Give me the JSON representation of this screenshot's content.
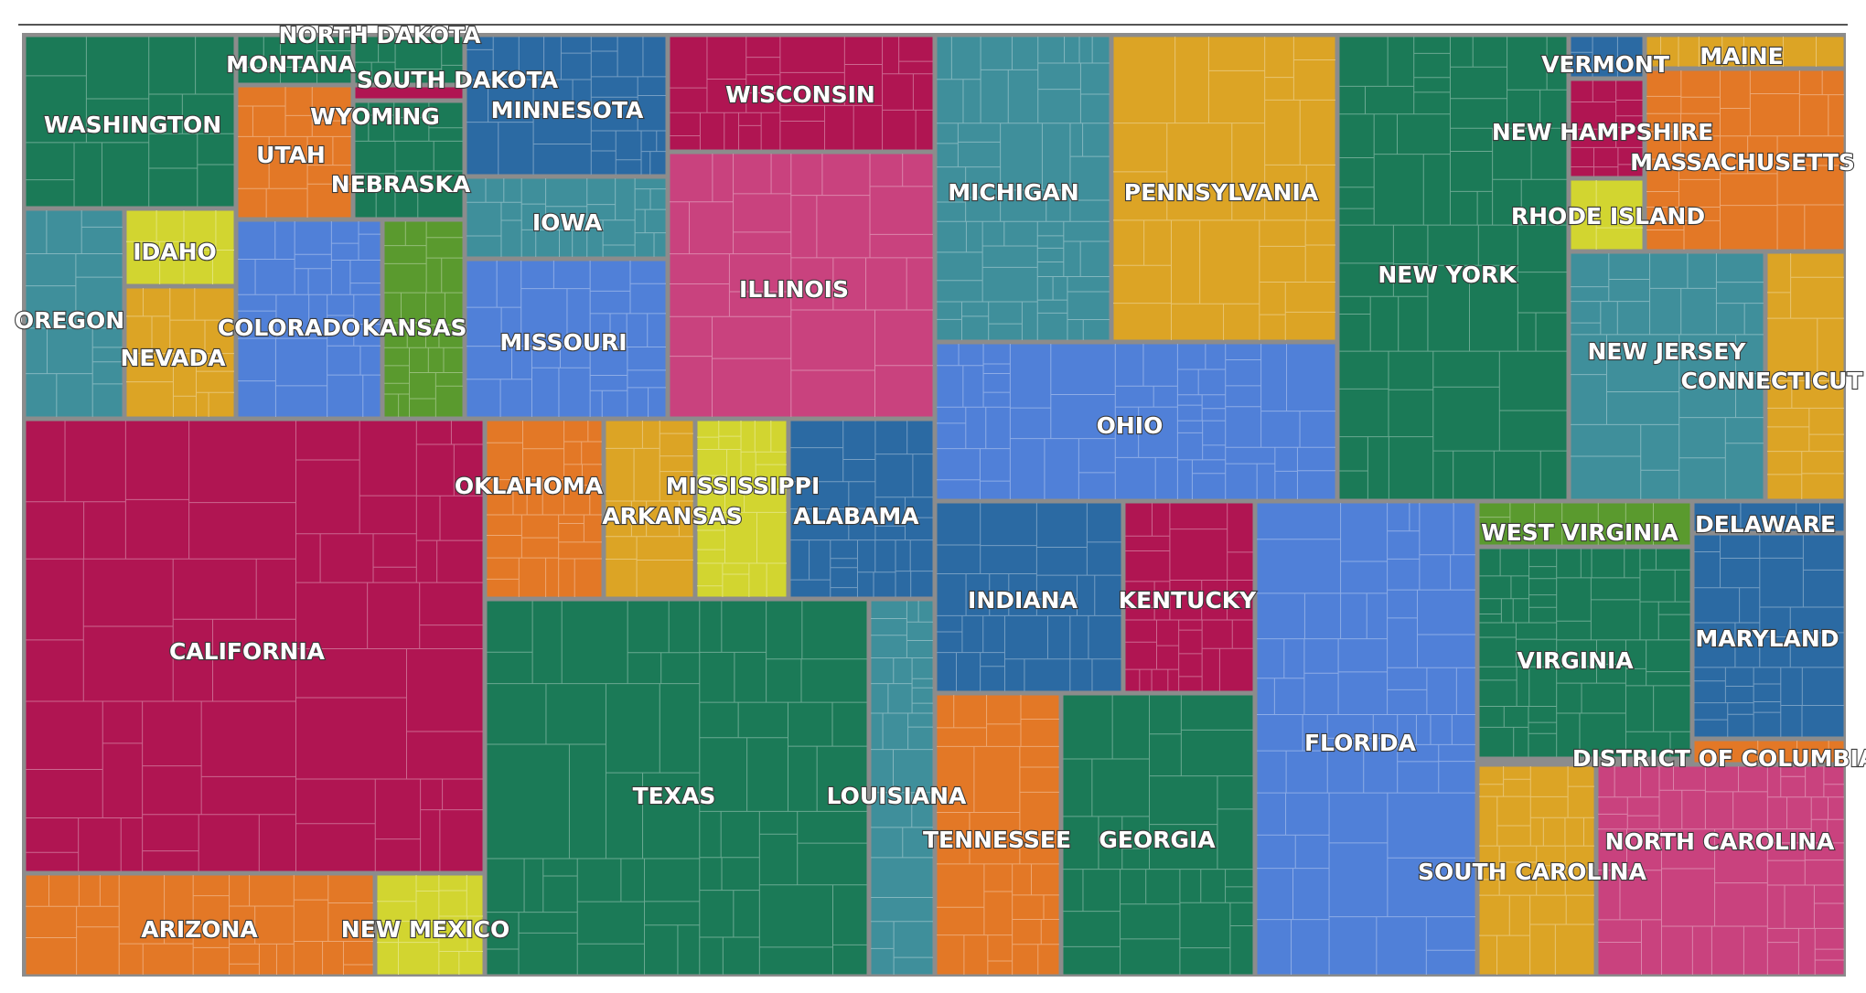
{
  "chart_data": {
    "type": "treemap",
    "title": "",
    "cells": [
      {
        "name": "WASHINGTON",
        "color": "#1b7a57"
      },
      {
        "name": "MONTANA",
        "color": "#1b7a57"
      },
      {
        "name": "NORTH DAKOTA",
        "color": "#1b7a57"
      },
      {
        "name": "SOUTH DAKOTA",
        "color": "#5a9a2e"
      },
      {
        "name": "WYOMING",
        "color": "#b01552"
      },
      {
        "name": "UTAH",
        "color": "#e37826"
      },
      {
        "name": "NEBRASKA",
        "color": "#1b7a57"
      },
      {
        "name": "OREGON",
        "color": "#3f8f9b"
      },
      {
        "name": "IDAHO",
        "color": "#d2d530"
      },
      {
        "name": "NEVADA",
        "color": "#dca425"
      },
      {
        "name": "COLORADO",
        "color": "#5080d8"
      },
      {
        "name": "KANSAS",
        "color": "#5a9a2e"
      },
      {
        "name": "MINNESOTA",
        "color": "#2b6aa3"
      },
      {
        "name": "IOWA",
        "color": "#3f8f9b"
      },
      {
        "name": "MISSOURI",
        "color": "#5080d8"
      },
      {
        "name": "WISCONSIN",
        "color": "#b01552"
      },
      {
        "name": "ILLINOIS",
        "color": "#c9427e"
      },
      {
        "name": "MICHIGAN",
        "color": "#3f8f9b"
      },
      {
        "name": "PENNSYLVANIA",
        "color": "#dca425"
      },
      {
        "name": "OHIO",
        "color": "#5080d8"
      },
      {
        "name": "NEW YORK",
        "color": "#1b7a57"
      },
      {
        "name": "VERMONT",
        "color": "#2b6aa3"
      },
      {
        "name": "MAINE",
        "color": "#dca425"
      },
      {
        "name": "NEW HAMPSHIRE",
        "color": "#b01552"
      },
      {
        "name": "MASSACHUSETTS",
        "color": "#e37826"
      },
      {
        "name": "RHODE ISLAND",
        "color": "#d2d530"
      },
      {
        "name": "NEW JERSEY",
        "color": "#3f8f9b"
      },
      {
        "name": "CONNECTICUT",
        "color": "#dca425"
      },
      {
        "name": "CALIFORNIA",
        "color": "#b01552"
      },
      {
        "name": "ARIZONA",
        "color": "#e37826"
      },
      {
        "name": "NEW MEXICO",
        "color": "#d2d530"
      },
      {
        "name": "OKLAHOMA",
        "color": "#e37826"
      },
      {
        "name": "ARKANSAS",
        "color": "#dca425"
      },
      {
        "name": "MISSISSIPPI",
        "color": "#d2d530"
      },
      {
        "name": "ALABAMA",
        "color": "#2b6aa3"
      },
      {
        "name": "TEXAS",
        "color": "#1b7a57"
      },
      {
        "name": "LOUISIANA",
        "color": "#3f8f9b"
      },
      {
        "name": "INDIANA",
        "color": "#2b6aa3"
      },
      {
        "name": "KENTUCKY",
        "color": "#b01552"
      },
      {
        "name": "TENNESSEE",
        "color": "#e37826"
      },
      {
        "name": "GEORGIA",
        "color": "#1b7a57"
      },
      {
        "name": "FLORIDA",
        "color": "#5080d8"
      },
      {
        "name": "WEST VIRGINIA",
        "color": "#5a9a2e"
      },
      {
        "name": "DELAWARE",
        "color": "#2b6aa3"
      },
      {
        "name": "VIRGINIA",
        "color": "#1b7a57"
      },
      {
        "name": "MARYLAND",
        "color": "#2b6aa3"
      },
      {
        "name": "DISTRICT OF COLUMBIA",
        "color": "#e37826"
      },
      {
        "name": "NORTH CAROLINA",
        "color": "#c9427e"
      },
      {
        "name": "SOUTH CAROLINA",
        "color": "#dca425"
      }
    ]
  }
}
